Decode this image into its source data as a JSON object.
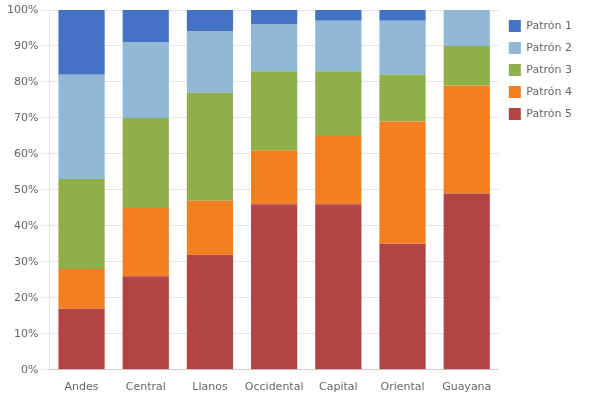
{
  "chart_data": {
    "type": "bar",
    "stacked": true,
    "categories": [
      "Andes",
      "Central",
      "Llanos",
      "Occidental",
      "Capital",
      "Oriental",
      "Guayana"
    ],
    "series": [
      {
        "name": "Patrón 5",
        "color": "#B24444",
        "values": [
          17,
          26,
          32,
          46,
          46,
          35,
          49
        ]
      },
      {
        "name": "Patrón 4",
        "color": "#F28020",
        "values": [
          11,
          19,
          15,
          15,
          19,
          34,
          30
        ]
      },
      {
        "name": "Patrón 3",
        "color": "#8DB04B",
        "values": [
          25,
          25,
          30,
          22,
          18,
          13,
          11
        ]
      },
      {
        "name": "Patrón 2",
        "color": "#92B8D8",
        "values": [
          29,
          21,
          17,
          13,
          14,
          15,
          10
        ]
      },
      {
        "name": "Patrón 1",
        "color": "#4472C4",
        "values": [
          18,
          9,
          6,
          4,
          3,
          3,
          0
        ]
      }
    ],
    "ylim": [
      0,
      100
    ],
    "yticks": [
      {
        "value": 0,
        "label": "0%"
      },
      {
        "value": 10,
        "label": "10%"
      },
      {
        "value": 20,
        "label": "20%"
      },
      {
        "value": 30,
        "label": "30%"
      },
      {
        "value": 40,
        "label": "40%"
      },
      {
        "value": 50,
        "label": "50%"
      },
      {
        "value": 60,
        "label": "60%"
      },
      {
        "value": 70,
        "label": "70%"
      },
      {
        "value": 80,
        "label": "80%"
      },
      {
        "value": 90,
        "label": "90%"
      },
      {
        "value": 100,
        "label": "100%"
      }
    ],
    "grid": true,
    "legend": "right"
  }
}
